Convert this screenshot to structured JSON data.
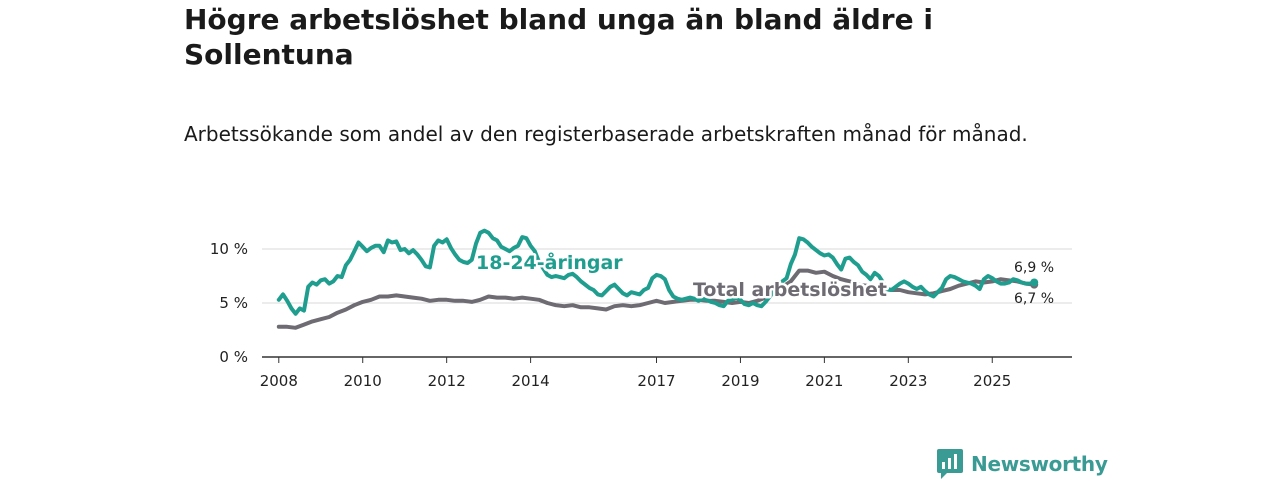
{
  "header": {
    "title": "Högre arbetslöshet bland unga än bland äldre i Sollentuna",
    "subtitle": "Arbetssökande som andel av den registerbaserade arbetskraften månad för månad."
  },
  "brand": {
    "name": "Newsworthy",
    "icon": "bar-chart-speech-bubble-icon"
  },
  "colors": {
    "youth": "#1f9e8f",
    "total": "#6e6b73",
    "grid": "#d9d9d9",
    "axis": "#333333"
  },
  "chart_data": {
    "type": "line",
    "title": "Högre arbetslöshet bland unga än bland äldre i Sollentuna",
    "subtitle": "Arbetssökande som andel av den registerbaserade arbetskraften månad för månad.",
    "xlabel": "",
    "ylabel": "",
    "ylim": [
      0,
      12
    ],
    "grid": "horizontal",
    "y_ticks": [
      {
        "value": 0,
        "label": "0 %"
      },
      {
        "value": 5,
        "label": "5 %"
      },
      {
        "value": 10,
        "label": "10 %"
      }
    ],
    "x_ticks": [
      {
        "value": 2008,
        "label": "2008"
      },
      {
        "value": 2010,
        "label": "2010"
      },
      {
        "value": 2012,
        "label": "2012"
      },
      {
        "value": 2014,
        "label": "2014"
      },
      {
        "value": 2017,
        "label": "2017"
      },
      {
        "value": 2019,
        "label": "2019"
      },
      {
        "value": 2021,
        "label": "2021"
      },
      {
        "value": 2023,
        "label": "2023"
      },
      {
        "value": 2025,
        "label": "2025"
      }
    ],
    "series": [
      {
        "name": "18-24-åringar",
        "label": "18-24-åringar",
        "end_label": "6,9 %",
        "end_value": 6.9,
        "points": [
          [
            2008.0,
            5.3
          ],
          [
            2008.1,
            5.8
          ],
          [
            2008.2,
            5.2
          ],
          [
            2008.3,
            4.5
          ],
          [
            2008.4,
            4.0
          ],
          [
            2008.5,
            4.5
          ],
          [
            2008.6,
            4.3
          ],
          [
            2008.7,
            6.5
          ],
          [
            2008.8,
            6.9
          ],
          [
            2008.9,
            6.7
          ],
          [
            2009.0,
            7.1
          ],
          [
            2009.1,
            7.2
          ],
          [
            2009.2,
            6.8
          ],
          [
            2009.3,
            7.0
          ],
          [
            2009.4,
            7.5
          ],
          [
            2009.5,
            7.4
          ],
          [
            2009.6,
            8.5
          ],
          [
            2009.7,
            9.0
          ],
          [
            2009.8,
            9.8
          ],
          [
            2009.9,
            10.6
          ],
          [
            2010.0,
            10.2
          ],
          [
            2010.1,
            9.8
          ],
          [
            2010.2,
            10.1
          ],
          [
            2010.3,
            10.3
          ],
          [
            2010.4,
            10.3
          ],
          [
            2010.5,
            9.7
          ],
          [
            2010.6,
            10.8
          ],
          [
            2010.7,
            10.6
          ],
          [
            2010.8,
            10.7
          ],
          [
            2010.9,
            9.9
          ],
          [
            2011.0,
            10.0
          ],
          [
            2011.1,
            9.6
          ],
          [
            2011.2,
            9.9
          ],
          [
            2011.3,
            9.5
          ],
          [
            2011.4,
            9.0
          ],
          [
            2011.5,
            8.4
          ],
          [
            2011.6,
            8.3
          ],
          [
            2011.7,
            10.3
          ],
          [
            2011.8,
            10.8
          ],
          [
            2011.9,
            10.6
          ],
          [
            2012.0,
            10.9
          ],
          [
            2012.1,
            10.1
          ],
          [
            2012.2,
            9.5
          ],
          [
            2012.3,
            9.0
          ],
          [
            2012.4,
            8.8
          ],
          [
            2012.5,
            8.7
          ],
          [
            2012.6,
            9.0
          ],
          [
            2012.7,
            10.5
          ],
          [
            2012.8,
            11.5
          ],
          [
            2012.9,
            11.7
          ],
          [
            2013.0,
            11.5
          ],
          [
            2013.1,
            11.0
          ],
          [
            2013.2,
            10.8
          ],
          [
            2013.3,
            10.2
          ],
          [
            2013.4,
            10.0
          ],
          [
            2013.5,
            9.8
          ],
          [
            2013.6,
            10.1
          ],
          [
            2013.7,
            10.3
          ],
          [
            2013.8,
            11.1
          ],
          [
            2013.9,
            11.0
          ],
          [
            2014.0,
            10.3
          ],
          [
            2014.1,
            9.8
          ],
          [
            2014.2,
            8.8
          ],
          [
            2014.3,
            8.2
          ],
          [
            2014.4,
            7.6
          ],
          [
            2014.5,
            7.4
          ],
          [
            2014.6,
            7.5
          ],
          [
            2014.7,
            7.4
          ],
          [
            2014.8,
            7.3
          ],
          [
            2014.9,
            7.6
          ],
          [
            2015.0,
            7.7
          ],
          [
            2015.1,
            7.4
          ],
          [
            2015.2,
            7.0
          ],
          [
            2015.3,
            6.7
          ],
          [
            2015.4,
            6.4
          ],
          [
            2015.5,
            6.2
          ],
          [
            2015.6,
            5.8
          ],
          [
            2015.7,
            5.7
          ],
          [
            2015.8,
            6.1
          ],
          [
            2015.9,
            6.5
          ],
          [
            2016.0,
            6.7
          ],
          [
            2016.1,
            6.3
          ],
          [
            2016.2,
            5.9
          ],
          [
            2016.3,
            5.7
          ],
          [
            2016.4,
            6.0
          ],
          [
            2016.5,
            5.9
          ],
          [
            2016.6,
            5.8
          ],
          [
            2016.7,
            6.2
          ],
          [
            2016.8,
            6.4
          ],
          [
            2016.9,
            7.3
          ],
          [
            2017.0,
            7.6
          ],
          [
            2017.1,
            7.5
          ],
          [
            2017.2,
            7.2
          ],
          [
            2017.3,
            6.2
          ],
          [
            2017.4,
            5.6
          ],
          [
            2017.5,
            5.4
          ],
          [
            2017.6,
            5.3
          ],
          [
            2017.7,
            5.4
          ],
          [
            2017.8,
            5.5
          ],
          [
            2017.9,
            5.4
          ],
          [
            2018.0,
            5.2
          ],
          [
            2018.1,
            5.4
          ],
          [
            2018.2,
            5.3
          ],
          [
            2018.3,
            5.1
          ],
          [
            2018.4,
            5.0
          ],
          [
            2018.5,
            4.8
          ],
          [
            2018.6,
            4.7
          ],
          [
            2018.7,
            5.2
          ],
          [
            2018.8,
            5.3
          ],
          [
            2018.9,
            5.5
          ],
          [
            2019.0,
            5.3
          ],
          [
            2019.1,
            4.9
          ],
          [
            2019.2,
            4.8
          ],
          [
            2019.3,
            5.0
          ],
          [
            2019.4,
            4.8
          ],
          [
            2019.5,
            4.7
          ],
          [
            2019.6,
            5.1
          ],
          [
            2019.7,
            5.6
          ],
          [
            2019.8,
            6.1
          ],
          [
            2019.9,
            6.6
          ],
          [
            2020.0,
            7.0
          ],
          [
            2020.1,
            7.3
          ],
          [
            2020.2,
            8.6
          ],
          [
            2020.3,
            9.5
          ],
          [
            2020.4,
            11.0
          ],
          [
            2020.5,
            10.9
          ],
          [
            2020.6,
            10.6
          ],
          [
            2020.7,
            10.2
          ],
          [
            2020.8,
            9.9
          ],
          [
            2020.9,
            9.6
          ],
          [
            2021.0,
            9.4
          ],
          [
            2021.1,
            9.5
          ],
          [
            2021.2,
            9.2
          ],
          [
            2021.3,
            8.6
          ],
          [
            2021.4,
            8.1
          ],
          [
            2021.5,
            9.1
          ],
          [
            2021.6,
            9.2
          ],
          [
            2021.7,
            8.8
          ],
          [
            2021.8,
            8.5
          ],
          [
            2021.9,
            7.9
          ],
          [
            2022.0,
            7.6
          ],
          [
            2022.1,
            7.2
          ],
          [
            2022.2,
            7.8
          ],
          [
            2022.3,
            7.5
          ],
          [
            2022.4,
            6.9
          ],
          [
            2022.5,
            6.3
          ],
          [
            2022.6,
            6.2
          ],
          [
            2022.7,
            6.5
          ],
          [
            2022.8,
            6.8
          ],
          [
            2022.9,
            7.0
          ],
          [
            2023.0,
            6.8
          ],
          [
            2023.1,
            6.5
          ],
          [
            2023.2,
            6.3
          ],
          [
            2023.3,
            6.5
          ],
          [
            2023.4,
            6.1
          ],
          [
            2023.5,
            5.8
          ],
          [
            2023.6,
            5.6
          ],
          [
            2023.7,
            6.0
          ],
          [
            2023.8,
            6.4
          ],
          [
            2023.9,
            7.2
          ],
          [
            2024.0,
            7.5
          ],
          [
            2024.1,
            7.4
          ],
          [
            2024.2,
            7.2
          ],
          [
            2024.3,
            7.0
          ],
          [
            2024.4,
            6.9
          ],
          [
            2024.5,
            6.8
          ],
          [
            2024.6,
            6.6
          ],
          [
            2024.7,
            6.3
          ],
          [
            2024.8,
            7.2
          ],
          [
            2024.9,
            7.5
          ],
          [
            2025.0,
            7.3
          ],
          [
            2025.1,
            7.0
          ],
          [
            2025.2,
            6.8
          ],
          [
            2025.3,
            6.8
          ],
          [
            2025.4,
            6.9
          ],
          [
            2025.5,
            7.2
          ],
          [
            2025.6,
            7.1
          ],
          [
            2025.7,
            6.9
          ],
          [
            2025.8,
            6.8
          ],
          [
            2025.9,
            6.8
          ],
          [
            2026.0,
            6.9
          ]
        ]
      },
      {
        "name": "Total arbetslöshet",
        "label": "Total arbetslöshet",
        "end_label": "6,7 %",
        "end_value": 6.7,
        "points": [
          [
            2008.0,
            2.8
          ],
          [
            2008.2,
            2.8
          ],
          [
            2008.4,
            2.7
          ],
          [
            2008.6,
            3.0
          ],
          [
            2008.8,
            3.3
          ],
          [
            2009.0,
            3.5
          ],
          [
            2009.2,
            3.7
          ],
          [
            2009.4,
            4.1
          ],
          [
            2009.6,
            4.4
          ],
          [
            2009.8,
            4.8
          ],
          [
            2010.0,
            5.1
          ],
          [
            2010.2,
            5.3
          ],
          [
            2010.4,
            5.6
          ],
          [
            2010.6,
            5.6
          ],
          [
            2010.8,
            5.7
          ],
          [
            2011.0,
            5.6
          ],
          [
            2011.2,
            5.5
          ],
          [
            2011.4,
            5.4
          ],
          [
            2011.6,
            5.2
          ],
          [
            2011.8,
            5.3
          ],
          [
            2012.0,
            5.3
          ],
          [
            2012.2,
            5.2
          ],
          [
            2012.4,
            5.2
          ],
          [
            2012.6,
            5.1
          ],
          [
            2012.8,
            5.3
          ],
          [
            2013.0,
            5.6
          ],
          [
            2013.2,
            5.5
          ],
          [
            2013.4,
            5.5
          ],
          [
            2013.6,
            5.4
          ],
          [
            2013.8,
            5.5
          ],
          [
            2014.0,
            5.4
          ],
          [
            2014.2,
            5.3
          ],
          [
            2014.4,
            5.0
          ],
          [
            2014.6,
            4.8
          ],
          [
            2014.8,
            4.7
          ],
          [
            2015.0,
            4.8
          ],
          [
            2015.2,
            4.6
          ],
          [
            2015.4,
            4.6
          ],
          [
            2015.6,
            4.5
          ],
          [
            2015.8,
            4.4
          ],
          [
            2016.0,
            4.7
          ],
          [
            2016.2,
            4.8
          ],
          [
            2016.4,
            4.7
          ],
          [
            2016.6,
            4.8
          ],
          [
            2016.8,
            5.0
          ],
          [
            2017.0,
            5.2
          ],
          [
            2017.2,
            5.0
          ],
          [
            2017.4,
            5.1
          ],
          [
            2017.6,
            5.2
          ],
          [
            2017.8,
            5.3
          ],
          [
            2018.0,
            5.3
          ],
          [
            2018.2,
            5.2
          ],
          [
            2018.4,
            5.2
          ],
          [
            2018.6,
            5.1
          ],
          [
            2018.8,
            5.0
          ],
          [
            2019.0,
            5.1
          ],
          [
            2019.2,
            5.0
          ],
          [
            2019.4,
            5.2
          ],
          [
            2019.6,
            5.5
          ],
          [
            2019.8,
            6.1
          ],
          [
            2020.0,
            6.5
          ],
          [
            2020.2,
            7.0
          ],
          [
            2020.4,
            8.0
          ],
          [
            2020.6,
            8.0
          ],
          [
            2020.8,
            7.8
          ],
          [
            2021.0,
            7.9
          ],
          [
            2021.2,
            7.5
          ],
          [
            2021.4,
            7.2
          ],
          [
            2021.6,
            7.0
          ],
          [
            2021.8,
            6.7
          ],
          [
            2022.0,
            6.6
          ],
          [
            2022.2,
            6.5
          ],
          [
            2022.4,
            6.3
          ],
          [
            2022.6,
            6.2
          ],
          [
            2022.8,
            6.2
          ],
          [
            2023.0,
            6.0
          ],
          [
            2023.2,
            5.9
          ],
          [
            2023.4,
            5.8
          ],
          [
            2023.6,
            5.9
          ],
          [
            2023.8,
            6.1
          ],
          [
            2024.0,
            6.3
          ],
          [
            2024.2,
            6.6
          ],
          [
            2024.4,
            6.8
          ],
          [
            2024.6,
            7.0
          ],
          [
            2024.8,
            6.9
          ],
          [
            2025.0,
            7.0
          ],
          [
            2025.2,
            7.2
          ],
          [
            2025.4,
            7.1
          ],
          [
            2025.6,
            7.0
          ],
          [
            2025.8,
            6.8
          ],
          [
            2026.0,
            6.7
          ]
        ]
      }
    ]
  }
}
